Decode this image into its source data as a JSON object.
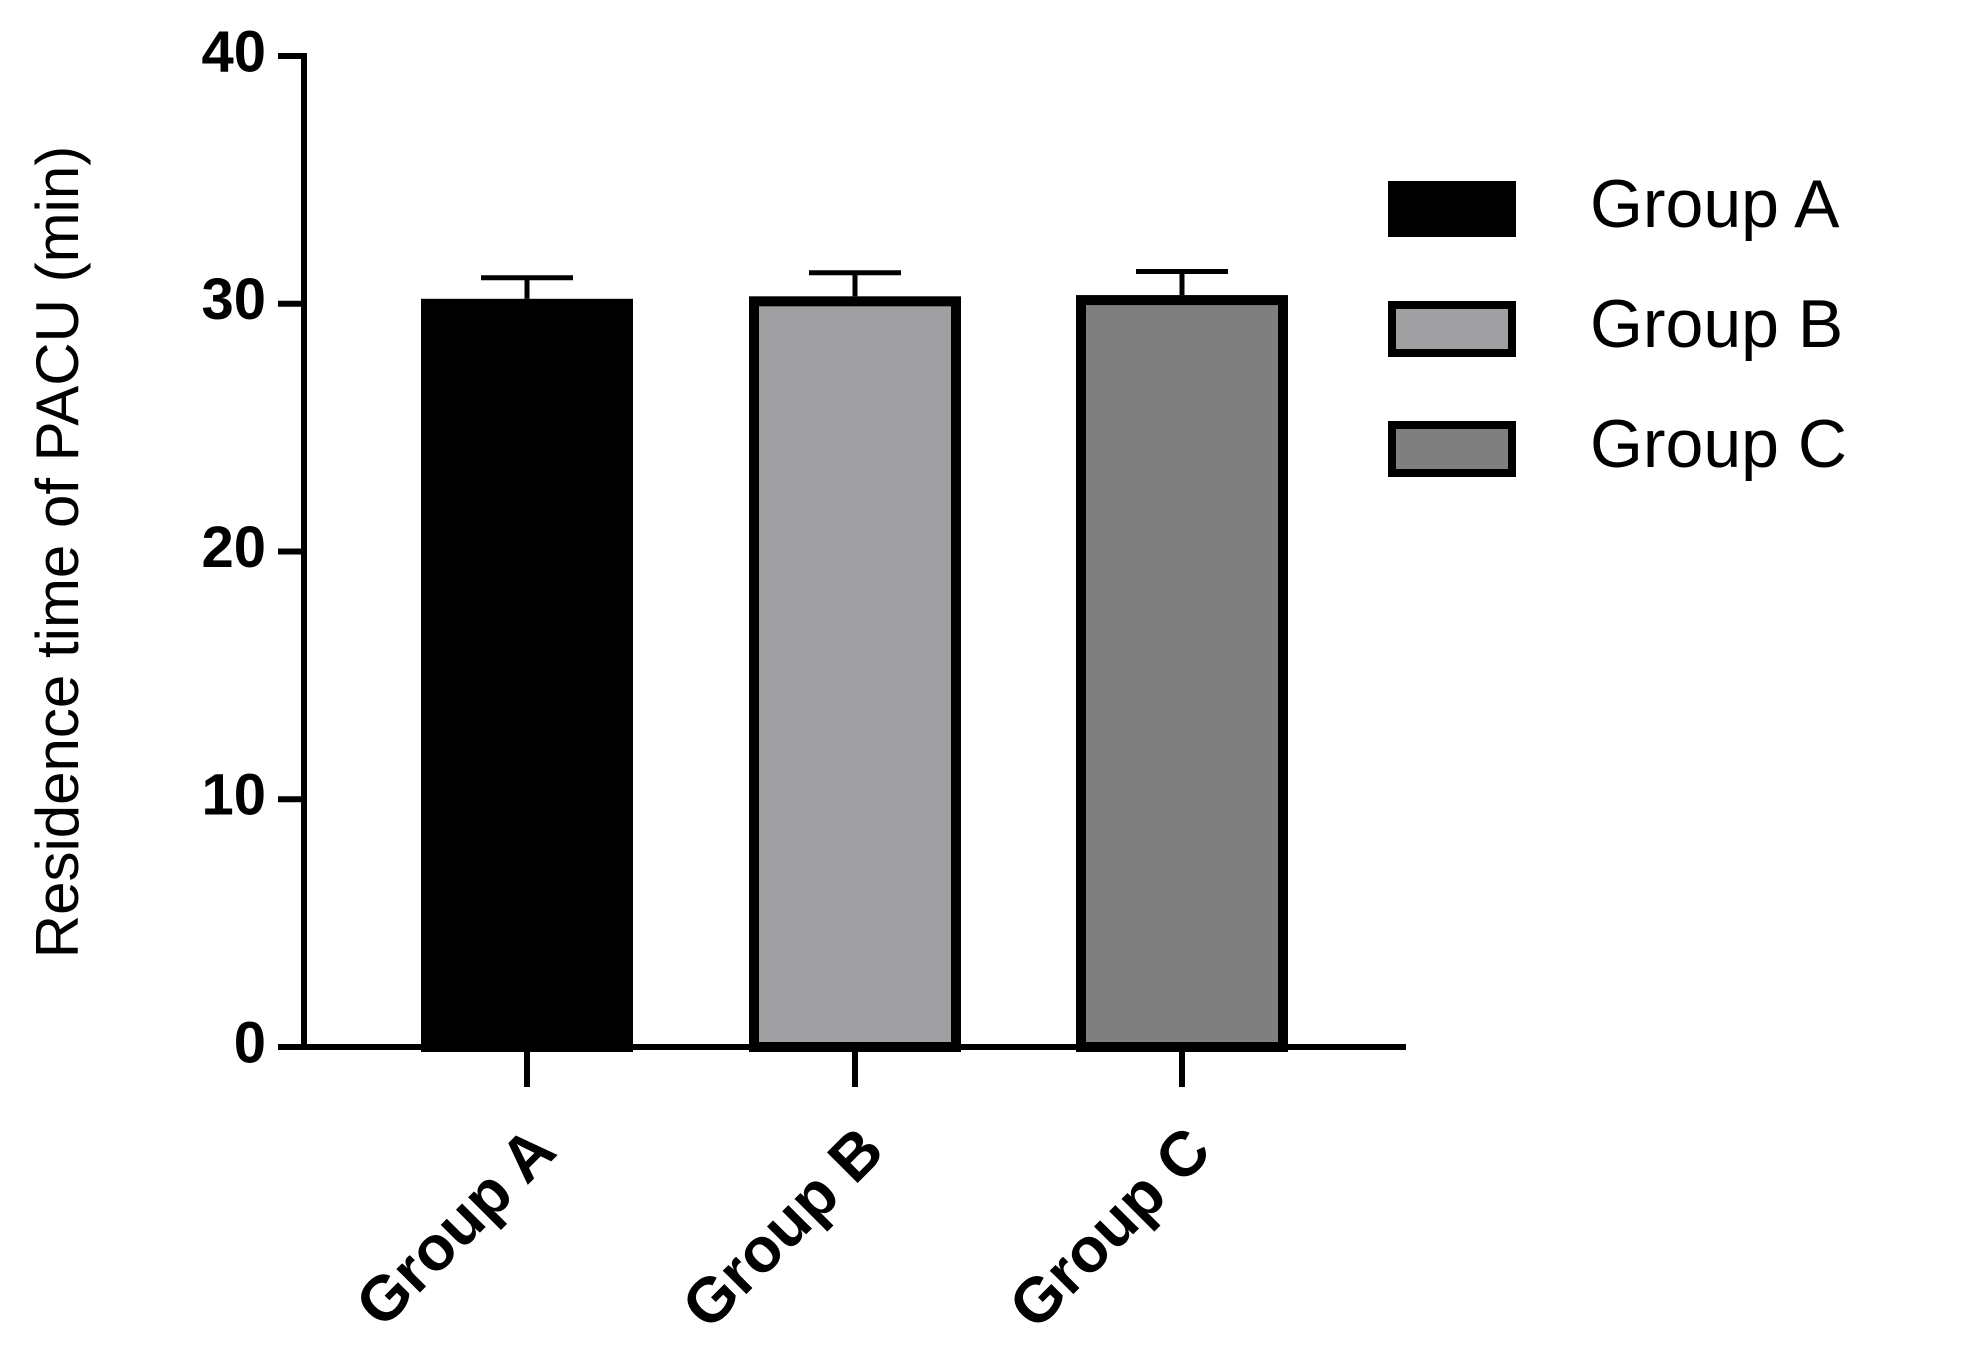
{
  "chart_data": {
    "type": "bar",
    "y_label": "Residence time of PACU (min)",
    "categories": [
      "Group A",
      "Group B",
      "Group C"
    ],
    "values": [
      30.2,
      30.3,
      30.35
    ],
    "errors": [
      0.85,
      0.95,
      0.95
    ],
    "colors": [
      "#000000",
      "#a0a0a2",
      "#7f7f7f"
    ],
    "ylim": [
      0,
      40
    ],
    "yticks": [
      0,
      10,
      20,
      30,
      40
    ],
    "legend": "right"
  }
}
